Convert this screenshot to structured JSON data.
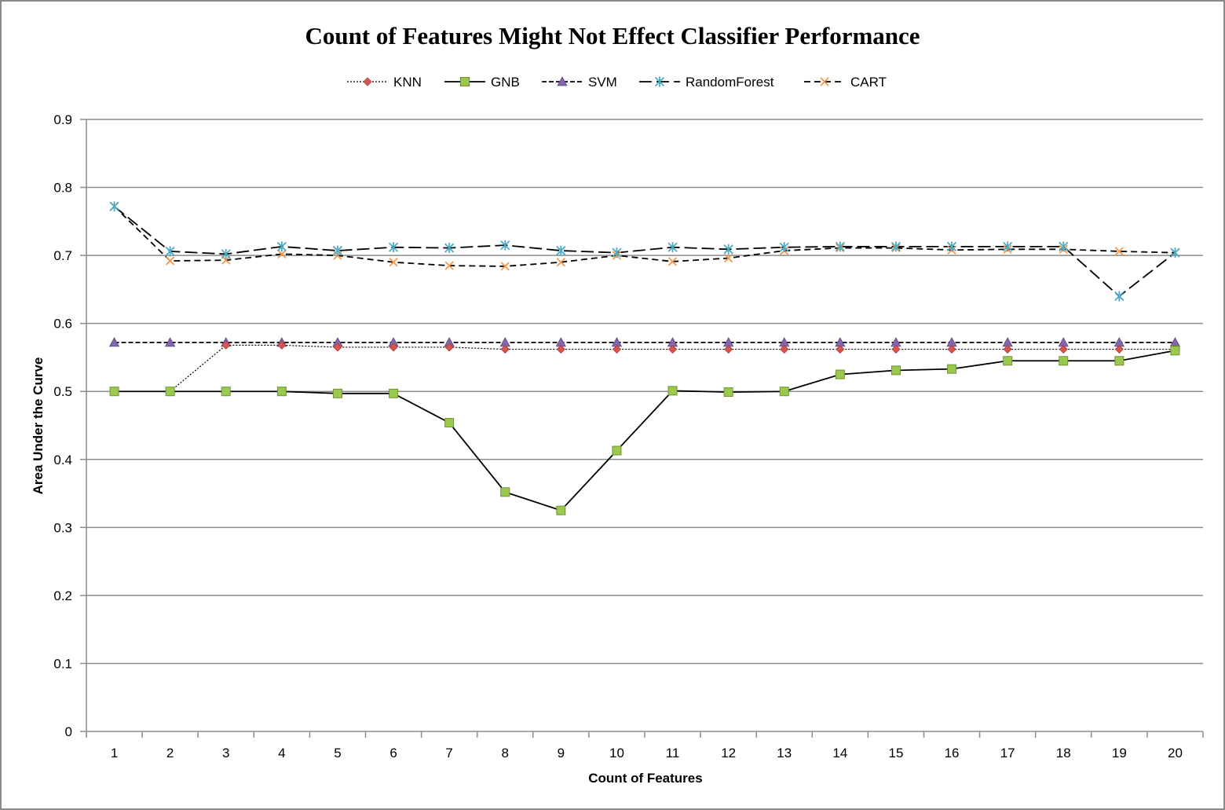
{
  "chart_data": {
    "type": "line",
    "title": "Count of Features Might Not Effect Classifier Performance",
    "xlabel": "Count of Features",
    "ylabel": "Area Under the Curve",
    "categories": [
      "1",
      "2",
      "3",
      "4",
      "5",
      "6",
      "7",
      "8",
      "9",
      "10",
      "11",
      "12",
      "13",
      "14",
      "15",
      "16",
      "17",
      "18",
      "19",
      "20"
    ],
    "ylim": [
      0,
      0.9
    ],
    "yticks": [
      "0",
      "0.1",
      "0.2",
      "0.3",
      "0.4",
      "0.5",
      "0.6",
      "0.7",
      "0.8",
      "0.9"
    ],
    "grid": true,
    "legend_position": "top",
    "series": [
      {
        "name": "KNN",
        "color": "#d9544f",
        "marker": "diamond",
        "line": "dotted",
        "values": [
          0.5,
          0.5,
          0.568,
          0.568,
          0.565,
          0.565,
          0.565,
          0.562,
          0.562,
          0.562,
          0.562,
          0.562,
          0.562,
          0.562,
          0.562,
          0.562,
          0.562,
          0.562,
          0.562,
          0.562
        ]
      },
      {
        "name": "GNB",
        "color": "#9bc84e",
        "marker": "square",
        "line": "solid",
        "values": [
          0.5,
          0.5,
          0.5,
          0.5,
          0.497,
          0.497,
          0.454,
          0.352,
          0.325,
          0.413,
          0.501,
          0.499,
          0.5,
          0.525,
          0.531,
          0.533,
          0.545,
          0.545,
          0.545,
          0.56
        ]
      },
      {
        "name": "SVM",
        "color": "#8466b0",
        "marker": "triangle",
        "line": "short-dash",
        "values": [
          0.572,
          0.572,
          0.572,
          0.572,
          0.572,
          0.572,
          0.572,
          0.572,
          0.572,
          0.572,
          0.572,
          0.572,
          0.572,
          0.572,
          0.572,
          0.572,
          0.572,
          0.572,
          0.572,
          0.572
        ]
      },
      {
        "name": "RandomForest",
        "color": "#4bacc6",
        "marker": "star",
        "line": "long-dash",
        "values": [
          0.772,
          0.706,
          0.702,
          0.713,
          0.707,
          0.712,
          0.711,
          0.715,
          0.707,
          0.704,
          0.712,
          0.709,
          0.712,
          0.713,
          0.713,
          0.713,
          0.713,
          0.713,
          0.64,
          0.704
        ]
      },
      {
        "name": "CART",
        "color": "#f79646",
        "marker": "x",
        "line": "medium-dash",
        "values": [
          0.772,
          0.692,
          0.693,
          0.702,
          0.7,
          0.69,
          0.685,
          0.684,
          0.69,
          0.7,
          0.691,
          0.696,
          0.707,
          0.711,
          0.711,
          0.708,
          0.709,
          0.709,
          0.706,
          0.704
        ]
      }
    ]
  }
}
